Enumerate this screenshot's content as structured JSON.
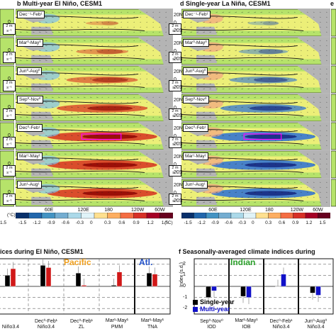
{
  "panel_b_title": "b  Multi-year El Niño, CESM1",
  "panel_d_title": "d  Single-year La Niña, CESM1",
  "panel_e_letter": "e",
  "season_rows": [
    "Dec⁻¹-Feb¹",
    "Mar⁰-May⁰",
    "Jun⁰-Aug⁰",
    "Sep⁰-Nov⁰",
    "Dec⁰-Feb¹",
    "Mar¹-May¹",
    "Jun¹-Aug¹"
  ],
  "left_strip_labels": [
    "0",
    "0",
    "0",
    "0",
    "0",
    "0",
    "0"
  ],
  "arrow_key_label": "2 m s⁻¹",
  "lat_ticks": [
    "20N",
    "0",
    "20S"
  ],
  "lon_ticks": [
    "60E",
    "120E",
    "180",
    "120W",
    "60W"
  ],
  "colorbar_ticks": [
    "-1.5",
    "-1.2",
    "-0.9",
    "-0.6",
    "-0.3",
    "0",
    "0.3",
    "0.6",
    "0.9",
    "1.2",
    "1.5"
  ],
  "colorbar_unit": "(°C)",
  "left_colorbar_ticks": [
    "1.5",
    "(°C)"
  ],
  "colors": {
    "land": "#b4b4b4",
    "ocean_bg": "#f2f07a",
    "warm": "#d7301f",
    "cool": "#2b6fd6",
    "single_year": "#000000",
    "multi_year": "#1010c8",
    "multi_year_elnino": "#d01818",
    "pacific": "#f0a020",
    "atlantic": "#1f4fc8",
    "indian": "#2aa02a"
  },
  "bottom_left_title": "ices during El Niño, CESM1",
  "bottom_right_title": "f  Seasonally-averaged climate indices during",
  "bottom_left_regions": [
    "Pacific",
    "Atl."
  ],
  "bottom_right_region": "Indian",
  "bottom_right_legend": [
    "Single-year",
    "Multi-year"
  ],
  "bottom_right_ylabel": "Index (s.d.)",
  "bottom_right_yticks": [
    "2",
    "1",
    "0",
    "-1",
    "-2"
  ],
  "chart_data": [
    {
      "type": "bar",
      "title": "Seasonally-averaged climate indices during El Niño, CESM1",
      "categories": [
        "Niño3.4",
        "Dec⁰-Feb¹ Niño3.4",
        "Dec⁰-Feb¹ ZL",
        "Mar¹-May¹ PMM",
        "Mar¹-May¹ TNA"
      ],
      "category_top": [
        "",
        "Dec⁰-Feb¹",
        "Dec⁰-Feb¹",
        "Mar¹-May¹",
        "Mar¹-May¹"
      ],
      "category_bottom": [
        "Niño3.4",
        "Niño3.4",
        "ZL",
        "PMM",
        "TNA"
      ],
      "series": [
        {
          "name": "Single-year",
          "values": [
            1.0,
            1.9,
            1.2,
            0.1,
            1.2
          ]
        },
        {
          "name": "Multi-year",
          "values": [
            1.6,
            1.7,
            0.1,
            1.3,
            1.1
          ]
        }
      ],
      "ylim": [
        -2.5,
        2.5
      ]
    },
    {
      "type": "bar",
      "title": "Seasonally-averaged climate indices during",
      "categories": [
        "Sep⁰-Nov⁰ IOD",
        "Mar¹-May¹ IOB",
        "Dec⁰-Feb¹ Niño3.4",
        "Jun⁰-Aug⁰ Niño3.4"
      ],
      "category_top": [
        "Sep⁰-Nov⁰",
        "Mar¹-May¹",
        "Dec⁰-Feb¹",
        "Jun⁰-Aug⁰"
      ],
      "category_bottom": [
        "IOD",
        "IOB",
        "Niño3.4",
        "Niño3.4"
      ],
      "series": [
        {
          "name": "Single-year",
          "values": [
            -1.0,
            -0.9,
            0.0,
            -0.6
          ]
        },
        {
          "name": "Multi-year",
          "values": [
            -0.4,
            -1.0,
            1.1,
            -0.8
          ]
        }
      ],
      "ylabel": "Index (s.d.)",
      "yticks": [
        2,
        1,
        0,
        -1,
        -2
      ],
      "ylim": [
        -2.5,
        2.5
      ]
    }
  ]
}
